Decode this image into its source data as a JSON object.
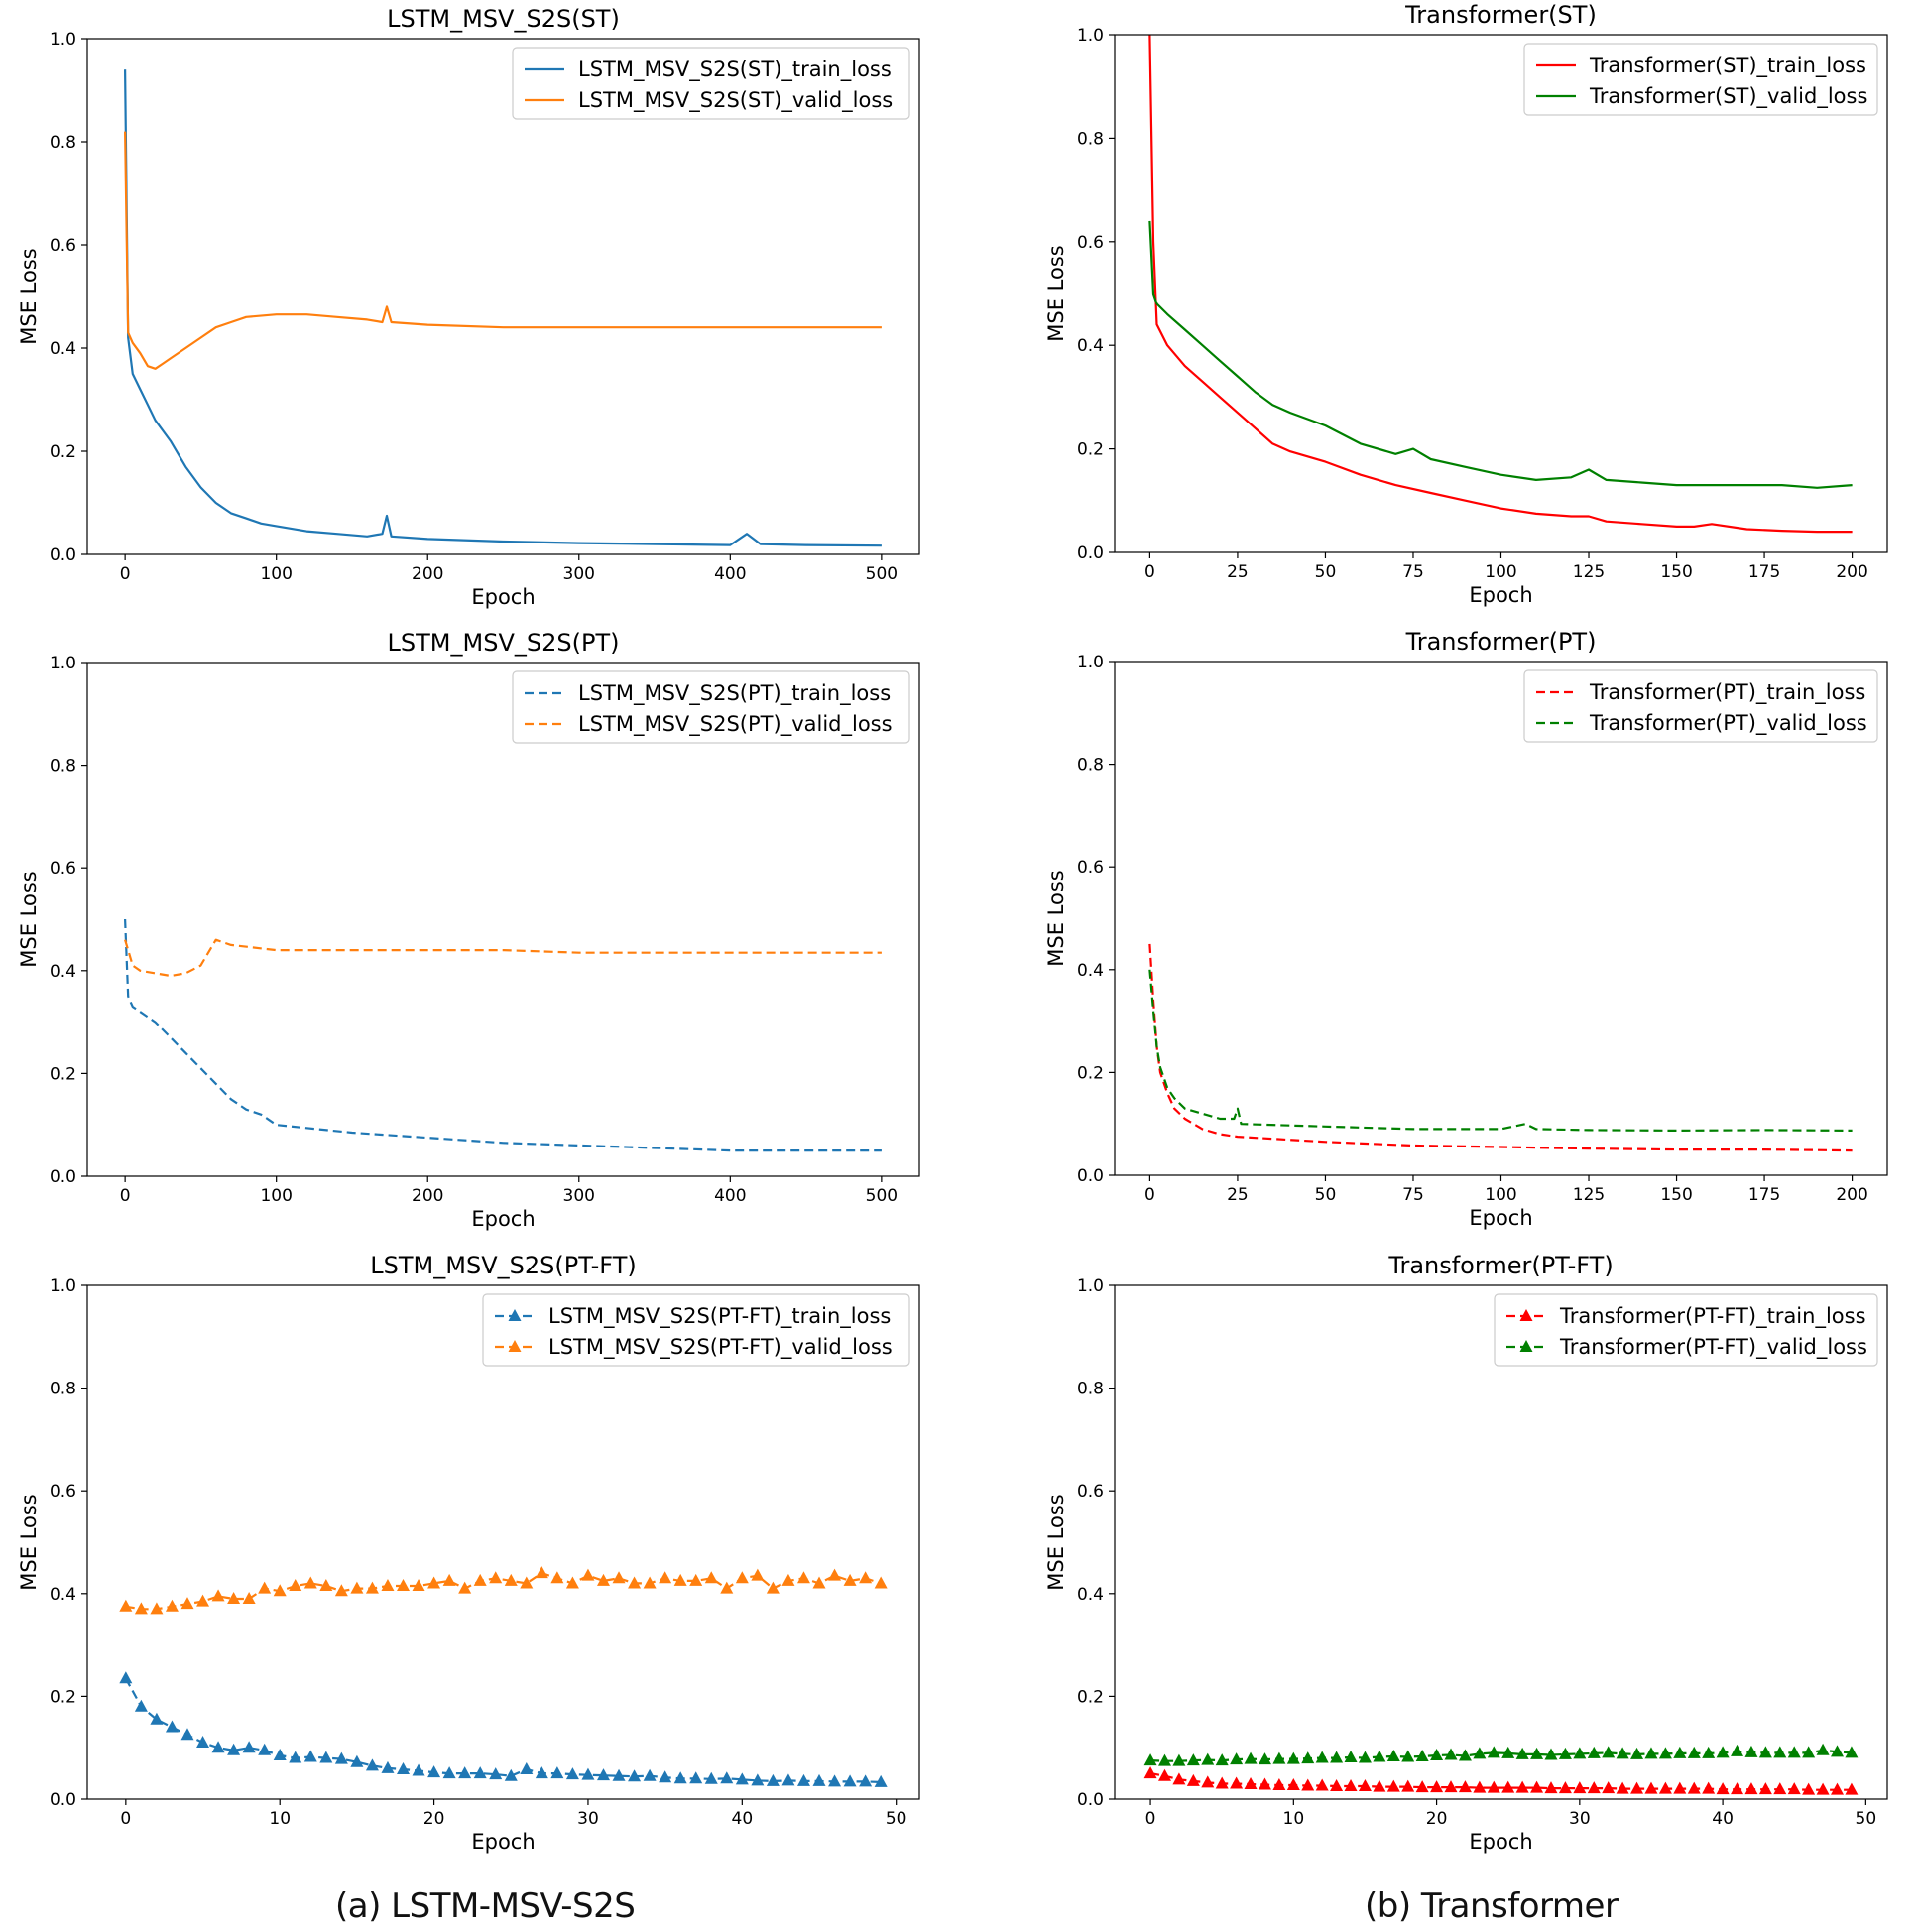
{
  "captions": {
    "left": "(a) LSTM-MSV-S2S",
    "right": "(b) Transformer"
  },
  "chart_data": [
    {
      "type": "line",
      "title": "LSTM_MSV_S2S(ST)",
      "xlabel": "Epoch",
      "ylabel": "MSE Loss",
      "xlim": [
        -25,
        525
      ],
      "ylim": [
        0,
        1.0
      ],
      "xticks": [
        0,
        100,
        200,
        300,
        400,
        500
      ],
      "yticks": [
        0.0,
        0.2,
        0.4,
        0.6,
        0.8,
        1.0
      ],
      "ytick_labels": [
        "0.0",
        "0.2",
        "0.4",
        "0.6",
        "0.8",
        "1.0"
      ],
      "legend": "top-right",
      "series": [
        {
          "name": "LSTM_MSV_S2S(ST)_train_loss",
          "color": "#1f77b4",
          "dash": "solid",
          "marker": "none",
          "x": [
            0,
            2,
            5,
            10,
            15,
            20,
            30,
            40,
            50,
            60,
            70,
            80,
            90,
            100,
            120,
            140,
            160,
            170,
            173,
            176,
            200,
            250,
            300,
            350,
            400,
            411,
            420,
            450,
            500
          ],
          "y": [
            0.94,
            0.42,
            0.35,
            0.32,
            0.29,
            0.26,
            0.22,
            0.17,
            0.13,
            0.1,
            0.08,
            0.07,
            0.06,
            0.055,
            0.045,
            0.04,
            0.035,
            0.04,
            0.075,
            0.035,
            0.03,
            0.025,
            0.022,
            0.02,
            0.018,
            0.04,
            0.02,
            0.018,
            0.017
          ]
        },
        {
          "name": "LSTM_MSV_S2S(ST)_valid_loss",
          "color": "#ff7f0e",
          "dash": "solid",
          "marker": "none",
          "x": [
            0,
            2,
            5,
            10,
            15,
            20,
            25,
            30,
            40,
            50,
            60,
            70,
            80,
            100,
            120,
            140,
            160,
            170,
            173,
            176,
            200,
            250,
            300,
            350,
            400,
            450,
            500
          ],
          "y": [
            0.82,
            0.43,
            0.41,
            0.39,
            0.365,
            0.36,
            0.37,
            0.38,
            0.4,
            0.42,
            0.44,
            0.45,
            0.46,
            0.465,
            0.465,
            0.46,
            0.455,
            0.45,
            0.48,
            0.45,
            0.445,
            0.44,
            0.44,
            0.44,
            0.44,
            0.44,
            0.44
          ]
        }
      ]
    },
    {
      "type": "line",
      "title": "LSTM_MSV_S2S(PT)",
      "xlabel": "Epoch",
      "ylabel": "MSE Loss",
      "xlim": [
        -25,
        525
      ],
      "ylim": [
        0,
        1.0
      ],
      "xticks": [
        0,
        100,
        200,
        300,
        400,
        500
      ],
      "yticks": [
        0.0,
        0.2,
        0.4,
        0.6,
        0.8,
        1.0
      ],
      "ytick_labels": [
        "0.0",
        "0.2",
        "0.4",
        "0.6",
        "0.8",
        "1.0"
      ],
      "legend": "top-right",
      "series": [
        {
          "name": "LSTM_MSV_S2S(PT)_train_loss",
          "color": "#1f77b4",
          "dash": "dashed",
          "marker": "none",
          "x": [
            0,
            2,
            5,
            10,
            20,
            30,
            40,
            50,
            60,
            70,
            80,
            90,
            100,
            150,
            200,
            250,
            300,
            350,
            400,
            450,
            500
          ],
          "y": [
            0.5,
            0.35,
            0.33,
            0.32,
            0.3,
            0.27,
            0.24,
            0.21,
            0.18,
            0.15,
            0.13,
            0.12,
            0.1,
            0.085,
            0.075,
            0.065,
            0.06,
            0.055,
            0.05,
            0.05,
            0.05
          ]
        },
        {
          "name": "LSTM_MSV_S2S(PT)_valid_loss",
          "color": "#ff7f0e",
          "dash": "dashed",
          "marker": "none",
          "x": [
            0,
            5,
            10,
            20,
            30,
            40,
            50,
            60,
            70,
            100,
            150,
            200,
            250,
            300,
            350,
            400,
            450,
            500
          ],
          "y": [
            0.46,
            0.41,
            0.4,
            0.395,
            0.39,
            0.395,
            0.41,
            0.46,
            0.45,
            0.44,
            0.44,
            0.44,
            0.44,
            0.435,
            0.435,
            0.435,
            0.435,
            0.435
          ]
        }
      ]
    },
    {
      "type": "line",
      "title": "LSTM_MSV_S2S(PT-FT)",
      "xlabel": "Epoch",
      "ylabel": "MSE Loss",
      "xlim": [
        -2.5,
        51.5
      ],
      "ylim": [
        0,
        1.0
      ],
      "xticks": [
        0,
        10,
        20,
        30,
        40,
        50
      ],
      "yticks": [
        0.0,
        0.2,
        0.4,
        0.6,
        0.8,
        1.0
      ],
      "ytick_labels": [
        "0.0",
        "0.2",
        "0.4",
        "0.6",
        "0.8",
        "1.0"
      ],
      "legend": "top-right",
      "series": [
        {
          "name": "LSTM_MSV_S2S(PT-FT)_train_loss",
          "color": "#1f77b4",
          "dash": "dashed",
          "marker": "triangle",
          "x": [
            0,
            1,
            2,
            3,
            4,
            5,
            6,
            7,
            8,
            9,
            10,
            11,
            12,
            13,
            14,
            15,
            16,
            17,
            18,
            19,
            20,
            21,
            22,
            23,
            24,
            25,
            26,
            27,
            28,
            29,
            30,
            31,
            32,
            33,
            34,
            35,
            36,
            37,
            38,
            39,
            40,
            41,
            42,
            43,
            44,
            45,
            46,
            47,
            48,
            49
          ],
          "y": [
            0.235,
            0.18,
            0.155,
            0.14,
            0.125,
            0.11,
            0.1,
            0.095,
            0.1,
            0.095,
            0.085,
            0.08,
            0.082,
            0.08,
            0.078,
            0.072,
            0.065,
            0.06,
            0.058,
            0.055,
            0.052,
            0.05,
            0.05,
            0.05,
            0.048,
            0.045,
            0.058,
            0.05,
            0.05,
            0.048,
            0.047,
            0.046,
            0.045,
            0.044,
            0.045,
            0.042,
            0.04,
            0.04,
            0.039,
            0.04,
            0.038,
            0.036,
            0.035,
            0.036,
            0.035,
            0.035,
            0.034,
            0.034,
            0.034,
            0.033
          ]
        },
        {
          "name": "LSTM_MSV_S2S(PT-FT)_valid_loss",
          "color": "#ff7f0e",
          "dash": "dashed",
          "marker": "triangle",
          "x": [
            0,
            1,
            2,
            3,
            4,
            5,
            6,
            7,
            8,
            9,
            10,
            11,
            12,
            13,
            14,
            15,
            16,
            17,
            18,
            19,
            20,
            21,
            22,
            23,
            24,
            25,
            26,
            27,
            28,
            29,
            30,
            31,
            32,
            33,
            34,
            35,
            36,
            37,
            38,
            39,
            40,
            41,
            42,
            43,
            44,
            45,
            46,
            47,
            48,
            49
          ],
          "y": [
            0.375,
            0.37,
            0.37,
            0.375,
            0.38,
            0.385,
            0.395,
            0.39,
            0.39,
            0.41,
            0.405,
            0.415,
            0.42,
            0.415,
            0.405,
            0.41,
            0.41,
            0.415,
            0.415,
            0.415,
            0.42,
            0.425,
            0.41,
            0.425,
            0.43,
            0.425,
            0.42,
            0.44,
            0.43,
            0.42,
            0.435,
            0.425,
            0.43,
            0.42,
            0.42,
            0.43,
            0.425,
            0.425,
            0.43,
            0.41,
            0.43,
            0.435,
            0.41,
            0.425,
            0.43,
            0.42,
            0.435,
            0.425,
            0.43,
            0.42
          ]
        }
      ]
    },
    {
      "type": "line",
      "title": "Transformer(ST)",
      "xlabel": "Epoch",
      "ylabel": "MSE Loss",
      "xlim": [
        -10,
        210
      ],
      "ylim": [
        0,
        1.0
      ],
      "xticks": [
        0,
        25,
        50,
        75,
        100,
        125,
        150,
        175,
        200
      ],
      "yticks": [
        0.0,
        0.2,
        0.4,
        0.6,
        0.8,
        1.0
      ],
      "ytick_labels": [
        "0.0",
        "0.2",
        "0.4",
        "0.6",
        "0.8",
        "1.0"
      ],
      "legend": "top-right",
      "series": [
        {
          "name": "Transformer(ST)_train_loss",
          "color": "#ff0000",
          "dash": "solid",
          "marker": "none",
          "x": [
            0,
            1,
            2,
            5,
            10,
            15,
            20,
            25,
            30,
            35,
            40,
            50,
            60,
            70,
            80,
            90,
            100,
            110,
            120,
            125,
            130,
            140,
            150,
            155,
            160,
            170,
            180,
            190,
            200
          ],
          "y": [
            1.0,
            0.6,
            0.44,
            0.4,
            0.36,
            0.33,
            0.3,
            0.27,
            0.24,
            0.21,
            0.195,
            0.175,
            0.15,
            0.13,
            0.115,
            0.1,
            0.085,
            0.075,
            0.07,
            0.07,
            0.06,
            0.055,
            0.05,
            0.05,
            0.055,
            0.045,
            0.042,
            0.04,
            0.04
          ]
        },
        {
          "name": "Transformer(ST)_valid_loss",
          "color": "#008000",
          "dash": "solid",
          "marker": "none",
          "x": [
            0,
            1,
            2,
            5,
            10,
            15,
            20,
            25,
            30,
            35,
            40,
            50,
            60,
            70,
            75,
            80,
            90,
            100,
            110,
            120,
            125,
            130,
            140,
            150,
            160,
            170,
            180,
            190,
            200
          ],
          "y": [
            0.64,
            0.5,
            0.48,
            0.46,
            0.43,
            0.4,
            0.37,
            0.34,
            0.31,
            0.285,
            0.27,
            0.245,
            0.21,
            0.19,
            0.2,
            0.18,
            0.165,
            0.15,
            0.14,
            0.145,
            0.16,
            0.14,
            0.135,
            0.13,
            0.13,
            0.13,
            0.13,
            0.125,
            0.13
          ]
        }
      ]
    },
    {
      "type": "line",
      "title": "Transformer(PT)",
      "xlabel": "Epoch",
      "ylabel": "MSE Loss",
      "xlim": [
        -10,
        210
      ],
      "ylim": [
        0,
        1.0
      ],
      "xticks": [
        0,
        25,
        50,
        75,
        100,
        125,
        150,
        175,
        200
      ],
      "yticks": [
        0.0,
        0.2,
        0.4,
        0.6,
        0.8,
        1.0
      ],
      "ytick_labels": [
        "0.0",
        "0.2",
        "0.4",
        "0.6",
        "0.8",
        "1.0"
      ],
      "legend": "top-right",
      "series": [
        {
          "name": "Transformer(PT)_train_loss",
          "color": "#ff0000",
          "dash": "dashed",
          "marker": "none",
          "x": [
            0,
            1,
            2,
            3,
            5,
            7,
            10,
            15,
            20,
            25,
            50,
            75,
            100,
            125,
            150,
            175,
            200
          ],
          "y": [
            0.45,
            0.34,
            0.25,
            0.2,
            0.16,
            0.13,
            0.11,
            0.09,
            0.08,
            0.075,
            0.065,
            0.058,
            0.055,
            0.052,
            0.05,
            0.05,
            0.048
          ]
        },
        {
          "name": "Transformer(PT)_valid_loss",
          "color": "#008000",
          "dash": "dashed",
          "marker": "none",
          "x": [
            0,
            1,
            2,
            3,
            5,
            7,
            10,
            15,
            20,
            24,
            25,
            26,
            50,
            75,
            100,
            107,
            110,
            125,
            150,
            175,
            200
          ],
          "y": [
            0.4,
            0.32,
            0.25,
            0.21,
            0.17,
            0.15,
            0.13,
            0.12,
            0.11,
            0.11,
            0.13,
            0.1,
            0.095,
            0.09,
            0.09,
            0.1,
            0.09,
            0.088,
            0.087,
            0.088,
            0.087
          ]
        }
      ]
    },
    {
      "type": "line",
      "title": "Transformer(PT-FT)",
      "xlabel": "Epoch",
      "ylabel": "MSE Loss",
      "xlim": [
        -2.5,
        51.5
      ],
      "ylim": [
        0,
        1.0
      ],
      "xticks": [
        0,
        10,
        20,
        30,
        40,
        50
      ],
      "yticks": [
        0.0,
        0.2,
        0.4,
        0.6,
        0.8,
        1.0
      ],
      "ytick_labels": [
        "0.0",
        "0.2",
        "0.4",
        "0.6",
        "0.8",
        "1.0"
      ],
      "legend": "top-right",
      "series": [
        {
          "name": "Transformer(PT-FT)_train_loss",
          "color": "#ff0000",
          "dash": "dashed",
          "marker": "triangle",
          "x": [
            0,
            1,
            2,
            3,
            4,
            5,
            6,
            7,
            8,
            9,
            10,
            11,
            12,
            13,
            14,
            15,
            16,
            17,
            18,
            19,
            20,
            21,
            22,
            23,
            24,
            25,
            26,
            27,
            28,
            29,
            30,
            31,
            32,
            33,
            34,
            35,
            36,
            37,
            38,
            39,
            40,
            41,
            42,
            43,
            44,
            45,
            46,
            47,
            48,
            49
          ],
          "y": [
            0.05,
            0.045,
            0.038,
            0.035,
            0.032,
            0.03,
            0.03,
            0.029,
            0.028,
            0.027,
            0.027,
            0.026,
            0.026,
            0.025,
            0.025,
            0.025,
            0.024,
            0.024,
            0.024,
            0.023,
            0.023,
            0.023,
            0.023,
            0.022,
            0.022,
            0.022,
            0.022,
            0.022,
            0.021,
            0.021,
            0.021,
            0.021,
            0.021,
            0.02,
            0.02,
            0.02,
            0.02,
            0.02,
            0.02,
            0.02,
            0.019,
            0.019,
            0.019,
            0.019,
            0.019,
            0.019,
            0.018,
            0.018,
            0.018,
            0.018
          ]
        },
        {
          "name": "Transformer(PT-FT)_valid_loss",
          "color": "#008000",
          "dash": "dashed",
          "marker": "triangle",
          "x": [
            0,
            1,
            2,
            3,
            4,
            5,
            6,
            7,
            8,
            9,
            10,
            11,
            12,
            13,
            14,
            15,
            16,
            17,
            18,
            19,
            20,
            21,
            22,
            23,
            24,
            25,
            26,
            27,
            28,
            29,
            30,
            31,
            32,
            33,
            34,
            35,
            36,
            37,
            38,
            39,
            40,
            41,
            42,
            43,
            44,
            45,
            46,
            47,
            48,
            49
          ],
          "y": [
            0.075,
            0.074,
            0.074,
            0.075,
            0.076,
            0.075,
            0.077,
            0.078,
            0.077,
            0.078,
            0.078,
            0.079,
            0.08,
            0.08,
            0.081,
            0.08,
            0.082,
            0.083,
            0.082,
            0.083,
            0.085,
            0.086,
            0.084,
            0.088,
            0.09,
            0.089,
            0.087,
            0.087,
            0.086,
            0.087,
            0.088,
            0.089,
            0.09,
            0.088,
            0.087,
            0.088,
            0.088,
            0.089,
            0.089,
            0.089,
            0.09,
            0.093,
            0.091,
            0.09,
            0.09,
            0.09,
            0.09,
            0.095,
            0.092,
            0.09
          ]
        }
      ]
    }
  ]
}
